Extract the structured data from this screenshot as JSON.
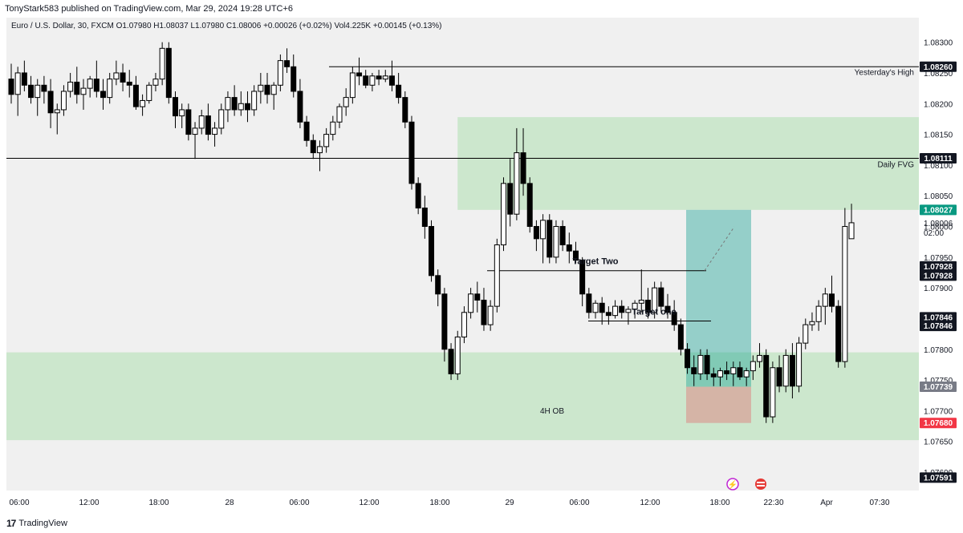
{
  "header": {
    "published": "TonyStark583 published on TradingView.com, Mar 29, 2024 19:28 UTC+6"
  },
  "legend": {
    "text": "Euro / U.S. Dollar, 30, FXCM  O1.07980  H1.08037  L1.07980  C1.08006  +0.00026 (+0.02%)  Vol4.225K  +0.00145 (+0.13%)"
  },
  "footer": {
    "brand": "TradingView"
  },
  "colors": {
    "up": "#ffffff",
    "down": "#000000",
    "wick": "#000000",
    "zone": "#c8e6c9",
    "profit": "#26a69a",
    "loss": "#d7a89c",
    "current": "#089981",
    "stop": "#f23645"
  },
  "chart_data": {
    "type": "candlestick",
    "symbol": "EURUSD",
    "timeframe": "30",
    "ylim": [
      1.0757,
      1.0834
    ],
    "y_ticks": [
      "1.08300",
      "1.08250",
      "1.08200",
      "1.08150",
      "1.08100",
      "1.08050",
      "1.08000",
      "1.07950",
      "1.07900",
      "1.07850",
      "1.07800",
      "1.07750",
      "1.07700",
      "1.07650",
      "1.07600"
    ],
    "x_ticks": [
      "06:00",
      "12:00",
      "18:00",
      "28",
      "06:00",
      "12:00",
      "18:00",
      "29",
      "06:00",
      "12:00",
      "18:00",
      "22:30",
      "Apr",
      "07:30"
    ],
    "candles": [
      [
        1.0824,
        1.08265,
        1.082,
        1.08215
      ],
      [
        1.08215,
        1.0826,
        1.0818,
        1.0825
      ],
      [
        1.0825,
        1.0827,
        1.0822,
        1.0823
      ],
      [
        1.0823,
        1.08245,
        1.082,
        1.0821
      ],
      [
        1.0821,
        1.0824,
        1.0818,
        1.0823
      ],
      [
        1.0823,
        1.08245,
        1.082,
        1.0822
      ],
      [
        1.0822,
        1.0824,
        1.0816,
        1.08185
      ],
      [
        1.08185,
        1.082,
        1.0815,
        1.0819
      ],
      [
        1.0819,
        1.0823,
        1.0818,
        1.0822
      ],
      [
        1.0822,
        1.0825,
        1.0821,
        1.08235
      ],
      [
        1.08235,
        1.0826,
        1.082,
        1.08215
      ],
      [
        1.08215,
        1.0824,
        1.0819,
        1.08225
      ],
      [
        1.08225,
        1.08245,
        1.0821,
        1.0824
      ],
      [
        1.0824,
        1.0827,
        1.0821,
        1.0822
      ],
      [
        1.0822,
        1.0824,
        1.0819,
        1.0821
      ],
      [
        1.0821,
        1.0825,
        1.082,
        1.0824
      ],
      [
        1.0824,
        1.0827,
        1.0823,
        1.0825
      ],
      [
        1.0825,
        1.08265,
        1.0822,
        1.08235
      ],
      [
        1.08235,
        1.08255,
        1.0821,
        1.0823
      ],
      [
        1.0823,
        1.08245,
        1.0819,
        1.08195
      ],
      [
        1.08195,
        1.08215,
        1.0818,
        1.08205
      ],
      [
        1.08205,
        1.08235,
        1.082,
        1.0823
      ],
      [
        1.0823,
        1.0825,
        1.0822,
        1.0824
      ],
      [
        1.0824,
        1.083,
        1.0823,
        1.0829
      ],
      [
        1.0829,
        1.083,
        1.082,
        1.0821
      ],
      [
        1.0821,
        1.0822,
        1.0816,
        1.0818
      ],
      [
        1.0818,
        1.082,
        1.0816,
        1.0819
      ],
      [
        1.0819,
        1.082,
        1.0814,
        1.0815
      ],
      [
        1.0815,
        1.0817,
        1.0811,
        1.0816
      ],
      [
        1.0816,
        1.0819,
        1.0815,
        1.0818
      ],
      [
        1.0818,
        1.082,
        1.0814,
        1.0815
      ],
      [
        1.0815,
        1.0817,
        1.0813,
        1.0816
      ],
      [
        1.0816,
        1.082,
        1.0815,
        1.0819
      ],
      [
        1.0819,
        1.0822,
        1.0817,
        1.0821
      ],
      [
        1.0821,
        1.0823,
        1.0818,
        1.0819
      ],
      [
        1.0819,
        1.0822,
        1.0818,
        1.082
      ],
      [
        1.082,
        1.0822,
        1.0817,
        1.0819
      ],
      [
        1.0819,
        1.0823,
        1.0818,
        1.0822
      ],
      [
        1.0822,
        1.0825,
        1.082,
        1.0823
      ],
      [
        1.0823,
        1.0825,
        1.082,
        1.08215
      ],
      [
        1.08215,
        1.08235,
        1.0819,
        1.0823
      ],
      [
        1.0823,
        1.0828,
        1.0822,
        1.0827
      ],
      [
        1.0827,
        1.0829,
        1.0825,
        1.0826
      ],
      [
        1.0826,
        1.0828,
        1.0821,
        1.0822
      ],
      [
        1.0822,
        1.0824,
        1.0816,
        1.0817
      ],
      [
        1.0817,
        1.0818,
        1.0813,
        1.0814
      ],
      [
        1.0814,
        1.0815,
        1.0811,
        1.0812
      ],
      [
        1.0812,
        1.0814,
        1.0809,
        1.0813
      ],
      [
        1.0813,
        1.0816,
        1.0812,
        1.0815
      ],
      [
        1.0815,
        1.0818,
        1.0814,
        1.0817
      ],
      [
        1.0817,
        1.082,
        1.0816,
        1.08195
      ],
      [
        1.08195,
        1.08225,
        1.0818,
        1.0821
      ],
      [
        1.0821,
        1.0826,
        1.082,
        1.0825
      ],
      [
        1.0825,
        1.08275,
        1.0823,
        1.08245
      ],
      [
        1.08245,
        1.08255,
        1.08225,
        1.0823
      ],
      [
        1.0823,
        1.0825,
        1.0822,
        1.08245
      ],
      [
        1.08245,
        1.08255,
        1.0823,
        1.0824
      ],
      [
        1.0824,
        1.08255,
        1.08235,
        1.08245
      ],
      [
        1.08245,
        1.0827,
        1.0822,
        1.0823
      ],
      [
        1.0823,
        1.0825,
        1.082,
        1.0821
      ],
      [
        1.0821,
        1.0822,
        1.0816,
        1.0817
      ],
      [
        1.0817,
        1.0818,
        1.0806,
        1.0807
      ],
      [
        1.0807,
        1.0808,
        1.0802,
        1.0803
      ],
      [
        1.0803,
        1.0805,
        1.0798,
        1.08
      ],
      [
        1.08,
        1.0801,
        1.0791,
        1.0792
      ],
      [
        1.0792,
        1.0793,
        1.0787,
        1.0789
      ],
      [
        1.0789,
        1.079,
        1.0778,
        1.078
      ],
      [
        1.078,
        1.0781,
        1.0775,
        1.0776
      ],
      [
        1.0776,
        1.0783,
        1.0775,
        1.0782
      ],
      [
        1.0782,
        1.0787,
        1.0781,
        1.0786
      ],
      [
        1.0786,
        1.079,
        1.0785,
        1.0789
      ],
      [
        1.0789,
        1.0791,
        1.0786,
        1.0788
      ],
      [
        1.0788,
        1.079,
        1.0783,
        1.0784
      ],
      [
        1.0784,
        1.0788,
        1.0783,
        1.0787
      ],
      [
        1.0787,
        1.0798,
        1.0786,
        1.0797
      ],
      [
        1.0797,
        1.0808,
        1.0796,
        1.0807
      ],
      [
        1.0807,
        1.0811,
        1.08,
        1.0802
      ],
      [
        1.0802,
        1.0816,
        1.0801,
        1.0812
      ],
      [
        1.0812,
        1.0816,
        1.0805,
        1.0807
      ],
      [
        1.0807,
        1.0808,
        1.0799,
        1.08
      ],
      [
        1.08,
        1.0801,
        1.0796,
        1.0798
      ],
      [
        1.0798,
        1.0802,
        1.0794,
        1.0801
      ],
      [
        1.0801,
        1.0802,
        1.0794,
        1.0795
      ],
      [
        1.0795,
        1.0801,
        1.0794,
        1.08
      ],
      [
        1.08,
        1.0801,
        1.0796,
        1.0797
      ],
      [
        1.0797,
        1.0799,
        1.0794,
        1.0796
      ],
      [
        1.0796,
        1.07975,
        1.0794,
        1.07945
      ],
      [
        1.07945,
        1.0795,
        1.0787,
        1.0789
      ],
      [
        1.0789,
        1.079,
        1.0785,
        1.0786
      ],
      [
        1.0786,
        1.0788,
        1.0785,
        1.07875
      ],
      [
        1.07875,
        1.07885,
        1.0784,
        1.0786
      ],
      [
        1.0786,
        1.0787,
        1.0784,
        1.07855
      ],
      [
        1.07855,
        1.0788,
        1.0785,
        1.0787
      ],
      [
        1.0787,
        1.0788,
        1.0785,
        1.0786
      ],
      [
        1.0786,
        1.0787,
        1.0784,
        1.07865
      ],
      [
        1.07865,
        1.0788,
        1.0785,
        1.07875
      ],
      [
        1.07875,
        1.0793,
        1.0786,
        1.0788
      ],
      [
        1.0788,
        1.079,
        1.0785,
        1.0786
      ],
      [
        1.0786,
        1.0791,
        1.0785,
        1.079
      ],
      [
        1.079,
        1.0791,
        1.0786,
        1.0787
      ],
      [
        1.0787,
        1.0789,
        1.0785,
        1.0786
      ],
      [
        1.0786,
        1.0788,
        1.0783,
        1.0784
      ],
      [
        1.0784,
        1.0785,
        1.0779,
        1.078
      ],
      [
        1.078,
        1.0781,
        1.0776,
        1.0777
      ],
      [
        1.0777,
        1.0779,
        1.0774,
        1.0776
      ],
      [
        1.0776,
        1.078,
        1.0775,
        1.0779
      ],
      [
        1.0779,
        1.078,
        1.0775,
        1.0776
      ],
      [
        1.0776,
        1.0777,
        1.0774,
        1.07755
      ],
      [
        1.07755,
        1.0777,
        1.0774,
        1.07765
      ],
      [
        1.07765,
        1.0778,
        1.0775,
        1.0776
      ],
      [
        1.0776,
        1.0778,
        1.0774,
        1.0777
      ],
      [
        1.0777,
        1.0778,
        1.0775,
        1.07755
      ],
      [
        1.07755,
        1.0777,
        1.0774,
        1.07765
      ],
      [
        1.07765,
        1.0779,
        1.0775,
        1.0778
      ],
      [
        1.0778,
        1.0781,
        1.0777,
        1.0779
      ],
      [
        1.0779,
        1.078,
        1.0768,
        1.0769
      ],
      [
        1.0769,
        1.0778,
        1.0768,
        1.0777
      ],
      [
        1.0777,
        1.0779,
        1.0773,
        1.0774
      ],
      [
        1.0774,
        1.078,
        1.0773,
        1.0779
      ],
      [
        1.0779,
        1.0781,
        1.0772,
        1.0774
      ],
      [
        1.0774,
        1.0782,
        1.0773,
        1.0781
      ],
      [
        1.0781,
        1.0785,
        1.078,
        1.0784
      ],
      [
        1.0784,
        1.0786,
        1.0783,
        1.07845
      ],
      [
        1.07845,
        1.0788,
        1.0783,
        1.0787
      ],
      [
        1.0787,
        1.079,
        1.0784,
        1.0789
      ],
      [
        1.0789,
        1.0792,
        1.0786,
        1.0787
      ],
      [
        1.0787,
        1.0788,
        1.0777,
        1.0778
      ],
      [
        1.0778,
        1.0803,
        1.0777,
        1.08
      ],
      [
        1.0798,
        1.08037,
        1.0798,
        1.08006
      ]
    ],
    "annotations": {
      "target_two": "Target Two",
      "target_one": "Target one",
      "yesterdays_high": "Yesterday's High",
      "daily_fvg": "Daily FVG",
      "ob_4h": "4H OB"
    },
    "levels": {
      "yesterdays_high": 1.0826,
      "fvg_line": 1.08111,
      "fvg_top": 1.08178,
      "fvg_bottom": 1.08027,
      "ob_top": 1.07795,
      "ob_bottom": 1.07652,
      "target_two": 1.07928,
      "target_one": 1.07846,
      "entry": 1.07739,
      "stop": 1.0768,
      "tp": 1.08027,
      "current": 1.08006
    },
    "price_tags": [
      {
        "label": "1.08260",
        "value": 1.0826,
        "style": "dark"
      },
      {
        "label": "1.08111",
        "value": 1.08111,
        "style": "dark"
      },
      {
        "label": "1.08027",
        "value": 1.08027,
        "style": "green"
      },
      {
        "label": "1.07928",
        "value": 1.07935,
        "style": "dark"
      },
      {
        "label": "1.07928",
        "value": 1.0792,
        "style": "dark"
      },
      {
        "label": "1.07846",
        "value": 1.07852,
        "style": "dark"
      },
      {
        "label": "1.07846",
        "value": 1.07838,
        "style": "dark"
      },
      {
        "label": "1.07739",
        "value": 1.07739,
        "style": "gray"
      },
      {
        "label": "1.07680",
        "value": 1.0768,
        "style": "red"
      },
      {
        "label": "1.07591",
        "value": 1.07591,
        "style": "dark"
      }
    ],
    "current_price_label": "1.08006",
    "countdown": "02:00"
  }
}
